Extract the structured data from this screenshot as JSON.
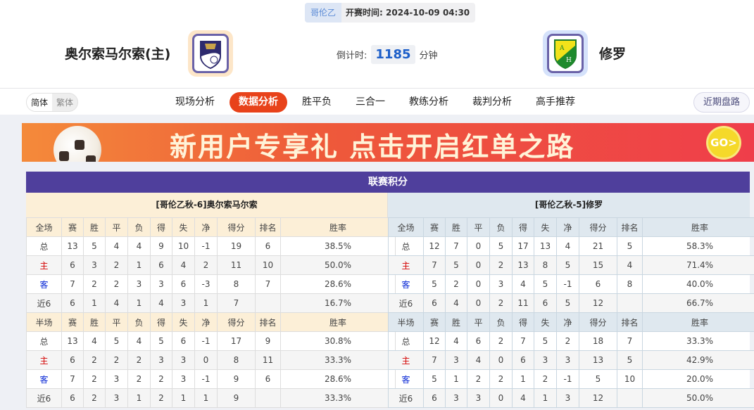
{
  "match": {
    "league": "哥伦乙",
    "time_label": "开赛时间:",
    "time": "2024-10-09 04:30",
    "home": "奥尔索马尔索(主)",
    "away": "修罗",
    "countdown_label": "倒计时:",
    "countdown": "1185",
    "countdown_unit": "分钟"
  },
  "lang": {
    "simplified": "简体",
    "traditional": "繁体"
  },
  "tabs": [
    "现场分析",
    "数据分析",
    "胜平负",
    "三合一",
    "教练分析",
    "裁判分析",
    "高手推荐"
  ],
  "active_tab": "数据分析",
  "recent_button": "近期盘路",
  "banner": {
    "text": "新用户专享礼  点击开启红单之路",
    "go": "GO>"
  },
  "standings": {
    "title": "联赛积分",
    "headers_full": [
      "全场",
      "赛",
      "胜",
      "平",
      "负",
      "得",
      "失",
      "净",
      "得分",
      "排名",
      "胜率"
    ],
    "headers_half": [
      "半场",
      "赛",
      "胜",
      "平",
      "负",
      "得",
      "失",
      "净",
      "得分",
      "排名",
      "胜率"
    ],
    "home": {
      "name": "[哥伦乙秋-6]奥尔索马尔索",
      "full": [
        [
          "总",
          "13",
          "5",
          "4",
          "4",
          "9",
          "10",
          "-1",
          "19",
          "6",
          "38.5%"
        ],
        [
          "主",
          "6",
          "3",
          "2",
          "1",
          "6",
          "4",
          "2",
          "11",
          "10",
          "50.0%"
        ],
        [
          "客",
          "7",
          "2",
          "2",
          "3",
          "3",
          "6",
          "-3",
          "8",
          "7",
          "28.6%"
        ],
        [
          "近6",
          "6",
          "1",
          "4",
          "1",
          "4",
          "3",
          "1",
          "7",
          "",
          "16.7%"
        ]
      ],
      "half": [
        [
          "总",
          "13",
          "4",
          "5",
          "4",
          "5",
          "6",
          "-1",
          "17",
          "9",
          "30.8%"
        ],
        [
          "主",
          "6",
          "2",
          "2",
          "2",
          "3",
          "3",
          "0",
          "8",
          "11",
          "33.3%"
        ],
        [
          "客",
          "7",
          "2",
          "3",
          "2",
          "2",
          "3",
          "-1",
          "9",
          "6",
          "28.6%"
        ],
        [
          "近6",
          "6",
          "2",
          "3",
          "1",
          "2",
          "1",
          "1",
          "9",
          "",
          "33.3%"
        ]
      ]
    },
    "away": {
      "name": "[哥伦乙秋-5]修罗",
      "full": [
        [
          "总",
          "12",
          "7",
          "0",
          "5",
          "17",
          "13",
          "4",
          "21",
          "5",
          "58.3%"
        ],
        [
          "主",
          "7",
          "5",
          "0",
          "2",
          "13",
          "8",
          "5",
          "15",
          "4",
          "71.4%"
        ],
        [
          "客",
          "5",
          "2",
          "0",
          "3",
          "4",
          "5",
          "-1",
          "6",
          "8",
          "40.0%"
        ],
        [
          "近6",
          "6",
          "4",
          "0",
          "2",
          "11",
          "6",
          "5",
          "12",
          "",
          "66.7%"
        ]
      ],
      "half": [
        [
          "总",
          "12",
          "4",
          "6",
          "2",
          "7",
          "5",
          "2",
          "18",
          "7",
          "33.3%"
        ],
        [
          "主",
          "7",
          "3",
          "4",
          "0",
          "6",
          "3",
          "3",
          "13",
          "5",
          "42.9%"
        ],
        [
          "客",
          "5",
          "1",
          "2",
          "2",
          "1",
          "2",
          "-1",
          "5",
          "10",
          "20.0%"
        ],
        [
          "近6",
          "6",
          "3",
          "3",
          "0",
          "4",
          "1",
          "3",
          "12",
          "",
          "50.0%"
        ]
      ]
    }
  }
}
